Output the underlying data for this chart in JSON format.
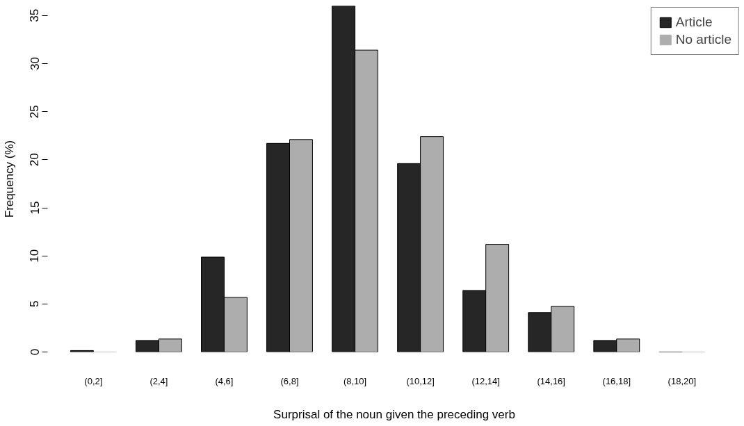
{
  "chart_data": {
    "type": "bar",
    "xlabel": "Surprisal of the noun given the preceding verb",
    "ylabel": "Frequency (%)",
    "categories": [
      "(0,2]",
      "(2,4]",
      "(4,6]",
      "(6,8]",
      "(8,10]",
      "(10,12]",
      "(12,14]",
      "(14,16]",
      "(16,18]",
      "(18,20]"
    ],
    "series": [
      {
        "name": "Article",
        "color": "#262626",
        "values": [
          0.15,
          1.2,
          9.87,
          21.7,
          36.0,
          19.6,
          6.4,
          4.1,
          1.2,
          0
        ]
      },
      {
        "name": "No article",
        "color": "#adadad",
        "values": [
          0,
          1.35,
          5.68,
          22.1,
          31.4,
          22.4,
          11.2,
          4.75,
          1.35,
          0
        ]
      }
    ],
    "ylim": [
      0,
      36
    ],
    "yticks": [
      0,
      5,
      10,
      15,
      20,
      25,
      30,
      35
    ],
    "grid": false,
    "legend": "top right"
  }
}
